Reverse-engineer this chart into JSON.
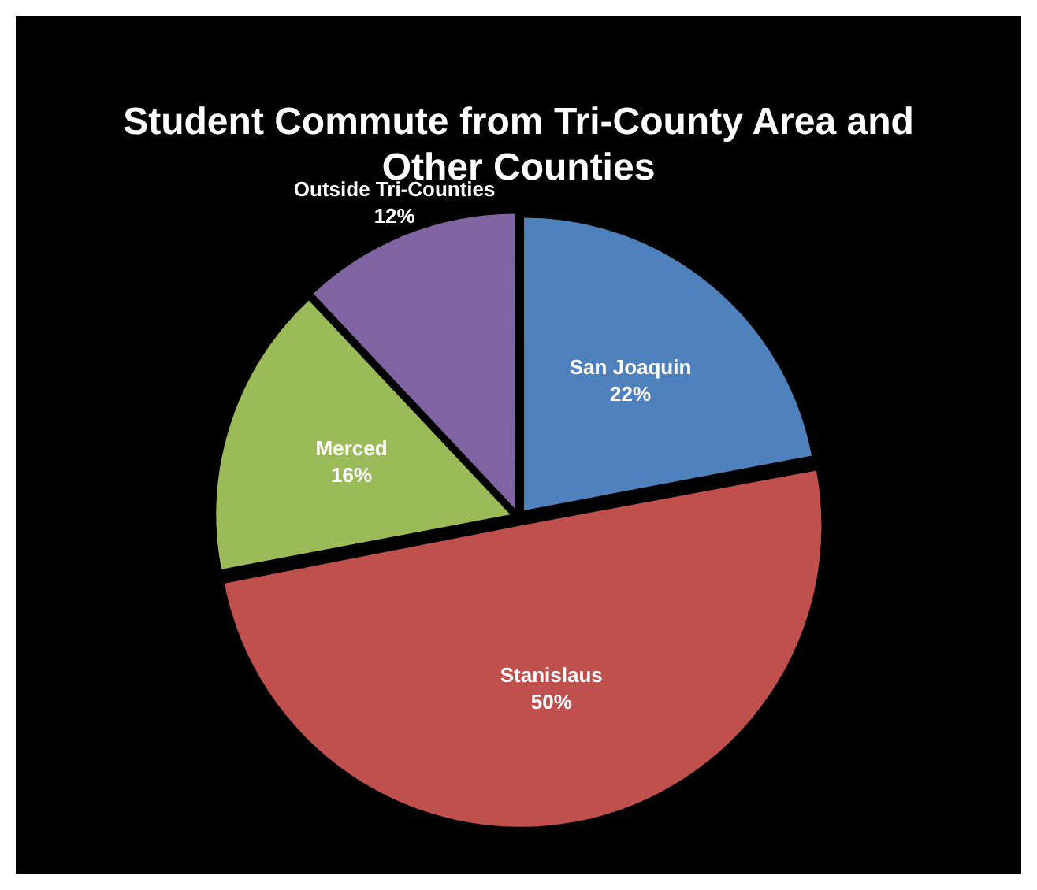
{
  "chart_data": {
    "type": "pie",
    "title": "Student Commute from Tri-County Area and Other Counties",
    "categories": [
      "San Joaquin",
      "Stanislaus",
      "Merced",
      "Outside Tri-Counties"
    ],
    "values": [
      22,
      50,
      16,
      12
    ],
    "value_labels": [
      "22%",
      "50%",
      "16%",
      "12%"
    ],
    "colors": [
      "#4f81bd",
      "#c0504d",
      "#9bbb59",
      "#8064a2"
    ],
    "legend": false
  }
}
